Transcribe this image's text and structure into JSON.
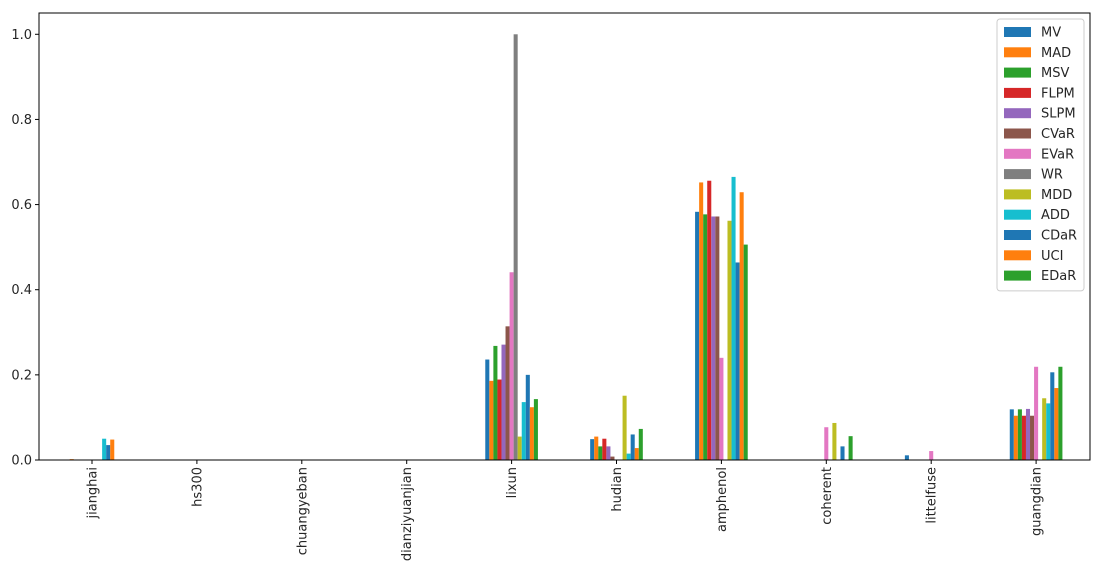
{
  "chart_data": {
    "type": "bar",
    "categories": [
      "jianghai",
      "hs300",
      "chuangyeban",
      "dianziyuanjian",
      "lixun",
      "hudian",
      "amphenol",
      "coherent",
      "littelfuse",
      "guangdian"
    ],
    "series": [
      {
        "name": "MV",
        "color": "#1f77b4",
        "values": [
          0,
          0,
          0,
          0,
          0.236,
          0.049,
          0.583,
          0,
          0.011,
          0.119
        ]
      },
      {
        "name": "MAD",
        "color": "#ff7f0e",
        "values": [
          0.002,
          0,
          0,
          0,
          0.186,
          0.055,
          0.652,
          0,
          0,
          0.104
        ]
      },
      {
        "name": "MSV",
        "color": "#2ca02c",
        "values": [
          0,
          0,
          0,
          0,
          0.268,
          0.032,
          0.577,
          0,
          0,
          0.119
        ]
      },
      {
        "name": "FLPM",
        "color": "#d62728",
        "values": [
          0,
          0,
          0,
          0,
          0.189,
          0.05,
          0.656,
          0,
          0,
          0.104
        ]
      },
      {
        "name": "SLPM",
        "color": "#9467bd",
        "values": [
          0,
          0,
          0,
          0,
          0.271,
          0.032,
          0.572,
          0,
          0,
          0.12
        ]
      },
      {
        "name": "CVaR",
        "color": "#8c564b",
        "values": [
          0,
          0,
          0,
          0,
          0.314,
          0.008,
          0.572,
          0,
          0,
          0.104
        ]
      },
      {
        "name": "EVaR",
        "color": "#e377c2",
        "values": [
          0,
          0,
          0,
          0,
          0.441,
          0,
          0.24,
          0.077,
          0.021,
          0.219
        ]
      },
      {
        "name": "WR",
        "color": "#7f7f7f",
        "values": [
          0,
          0,
          0,
          0,
          1.0,
          0,
          0,
          0,
          0,
          0
        ]
      },
      {
        "name": "MDD",
        "color": "#bcbd22",
        "values": [
          0,
          0,
          0,
          0,
          0.055,
          0.151,
          0.562,
          0.087,
          0,
          0.145
        ]
      },
      {
        "name": "ADD",
        "color": "#17becf",
        "values": [
          0.05,
          0,
          0,
          0,
          0.136,
          0.015,
          0.665,
          0,
          0,
          0.133
        ]
      },
      {
        "name": "CDaR",
        "color": "#1f77b4",
        "values": [
          0.035,
          0,
          0,
          0,
          0.2,
          0.06,
          0.464,
          0.032,
          0,
          0.206
        ]
      },
      {
        "name": "UCI",
        "color": "#ff7f0e",
        "values": [
          0.048,
          0,
          0,
          0,
          0.124,
          0.028,
          0.629,
          0,
          0,
          0.169
        ]
      },
      {
        "name": "EDaR",
        "color": "#2ca02c",
        "values": [
          0,
          0,
          0,
          0,
          0.143,
          0.073,
          0.506,
          0.056,
          0,
          0.219
        ]
      }
    ],
    "ylim": [
      0,
      1.05
    ],
    "yticks": [
      0.0,
      0.2,
      0.4,
      0.6,
      0.8,
      1.0
    ],
    "ytick_labels": [
      "0.0",
      "0.2",
      "0.4",
      "0.6",
      "0.8",
      "1.0"
    ],
    "title": "",
    "xlabel": "",
    "ylabel": "",
    "legend_position": "top-right",
    "grid": false
  }
}
